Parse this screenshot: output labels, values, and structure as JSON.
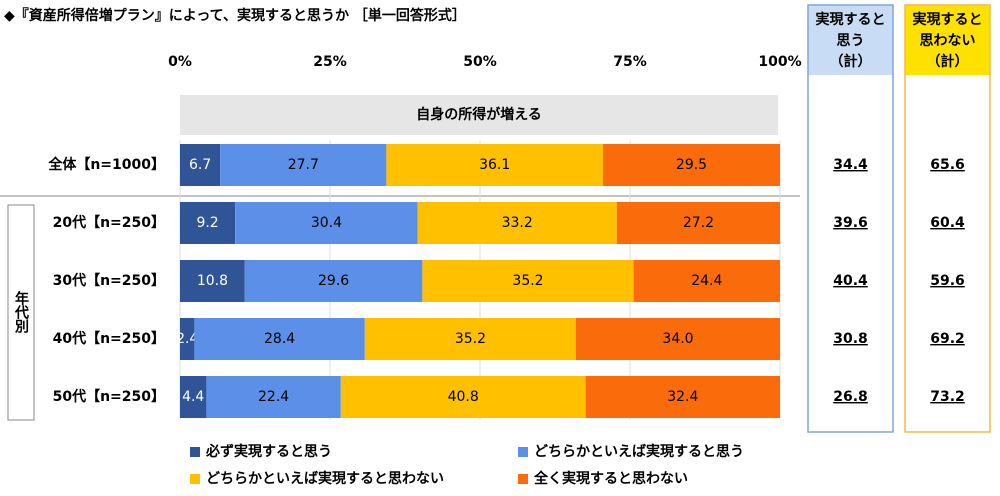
{
  "chart_data": {
    "type": "stacked-bar-horizontal",
    "title": "◆『資産所得倍増プラン』によって、実現すると思うか ［単一回答形式］",
    "subtitle": "自身の所得が増える",
    "group_label": "年代別",
    "categories": [
      "全体【n=1000】",
      "20代【n=250】",
      "30代【n=250】",
      "40代【n=250】",
      "50代【n=250】"
    ],
    "series": [
      {
        "name": "必ず実現すると思う",
        "color": "#2f5597",
        "values": [
          6.7,
          9.2,
          10.8,
          2.4,
          4.4
        ]
      },
      {
        "name": "どちらかといえば実現すると思う",
        "color": "#5b8fe8",
        "values": [
          27.7,
          30.4,
          29.6,
          28.4,
          22.4
        ]
      },
      {
        "name": "どちらかといえば実現すると思わない",
        "color": "#ffc000",
        "values": [
          36.1,
          33.2,
          35.2,
          35.2,
          40.8
        ]
      },
      {
        "name": "全く実現すると思わない",
        "color": "#fa6b0c",
        "values": [
          29.5,
          27.2,
          24.4,
          34.0,
          32.4
        ],
        "value_labels": [
          "29.5",
          "27.2",
          "24.4",
          "34.0",
          "32.4"
        ]
      }
    ],
    "xlim": [
      0,
      100
    ],
    "xticks": [
      {
        "value": 0,
        "label": "0%"
      },
      {
        "value": 25,
        "label": "25%"
      },
      {
        "value": 50,
        "label": "50%"
      },
      {
        "value": 75,
        "label": "75%"
      },
      {
        "value": 100,
        "label": "100%"
      }
    ],
    "summary_columns": [
      {
        "name_lines": [
          "実現すると",
          "思う",
          "（計）"
        ],
        "header_color": "#c9dcf5",
        "border_color": "#7fa6d6",
        "values": [
          34.4,
          39.6,
          40.4,
          30.8,
          26.8
        ]
      },
      {
        "name_lines": [
          "実現すると",
          "思わない",
          "（計）"
        ],
        "header_color": "#ffe100",
        "border_color": "#f5b94a",
        "values": [
          65.6,
          60.4,
          59.6,
          69.2,
          73.2
        ]
      }
    ]
  }
}
